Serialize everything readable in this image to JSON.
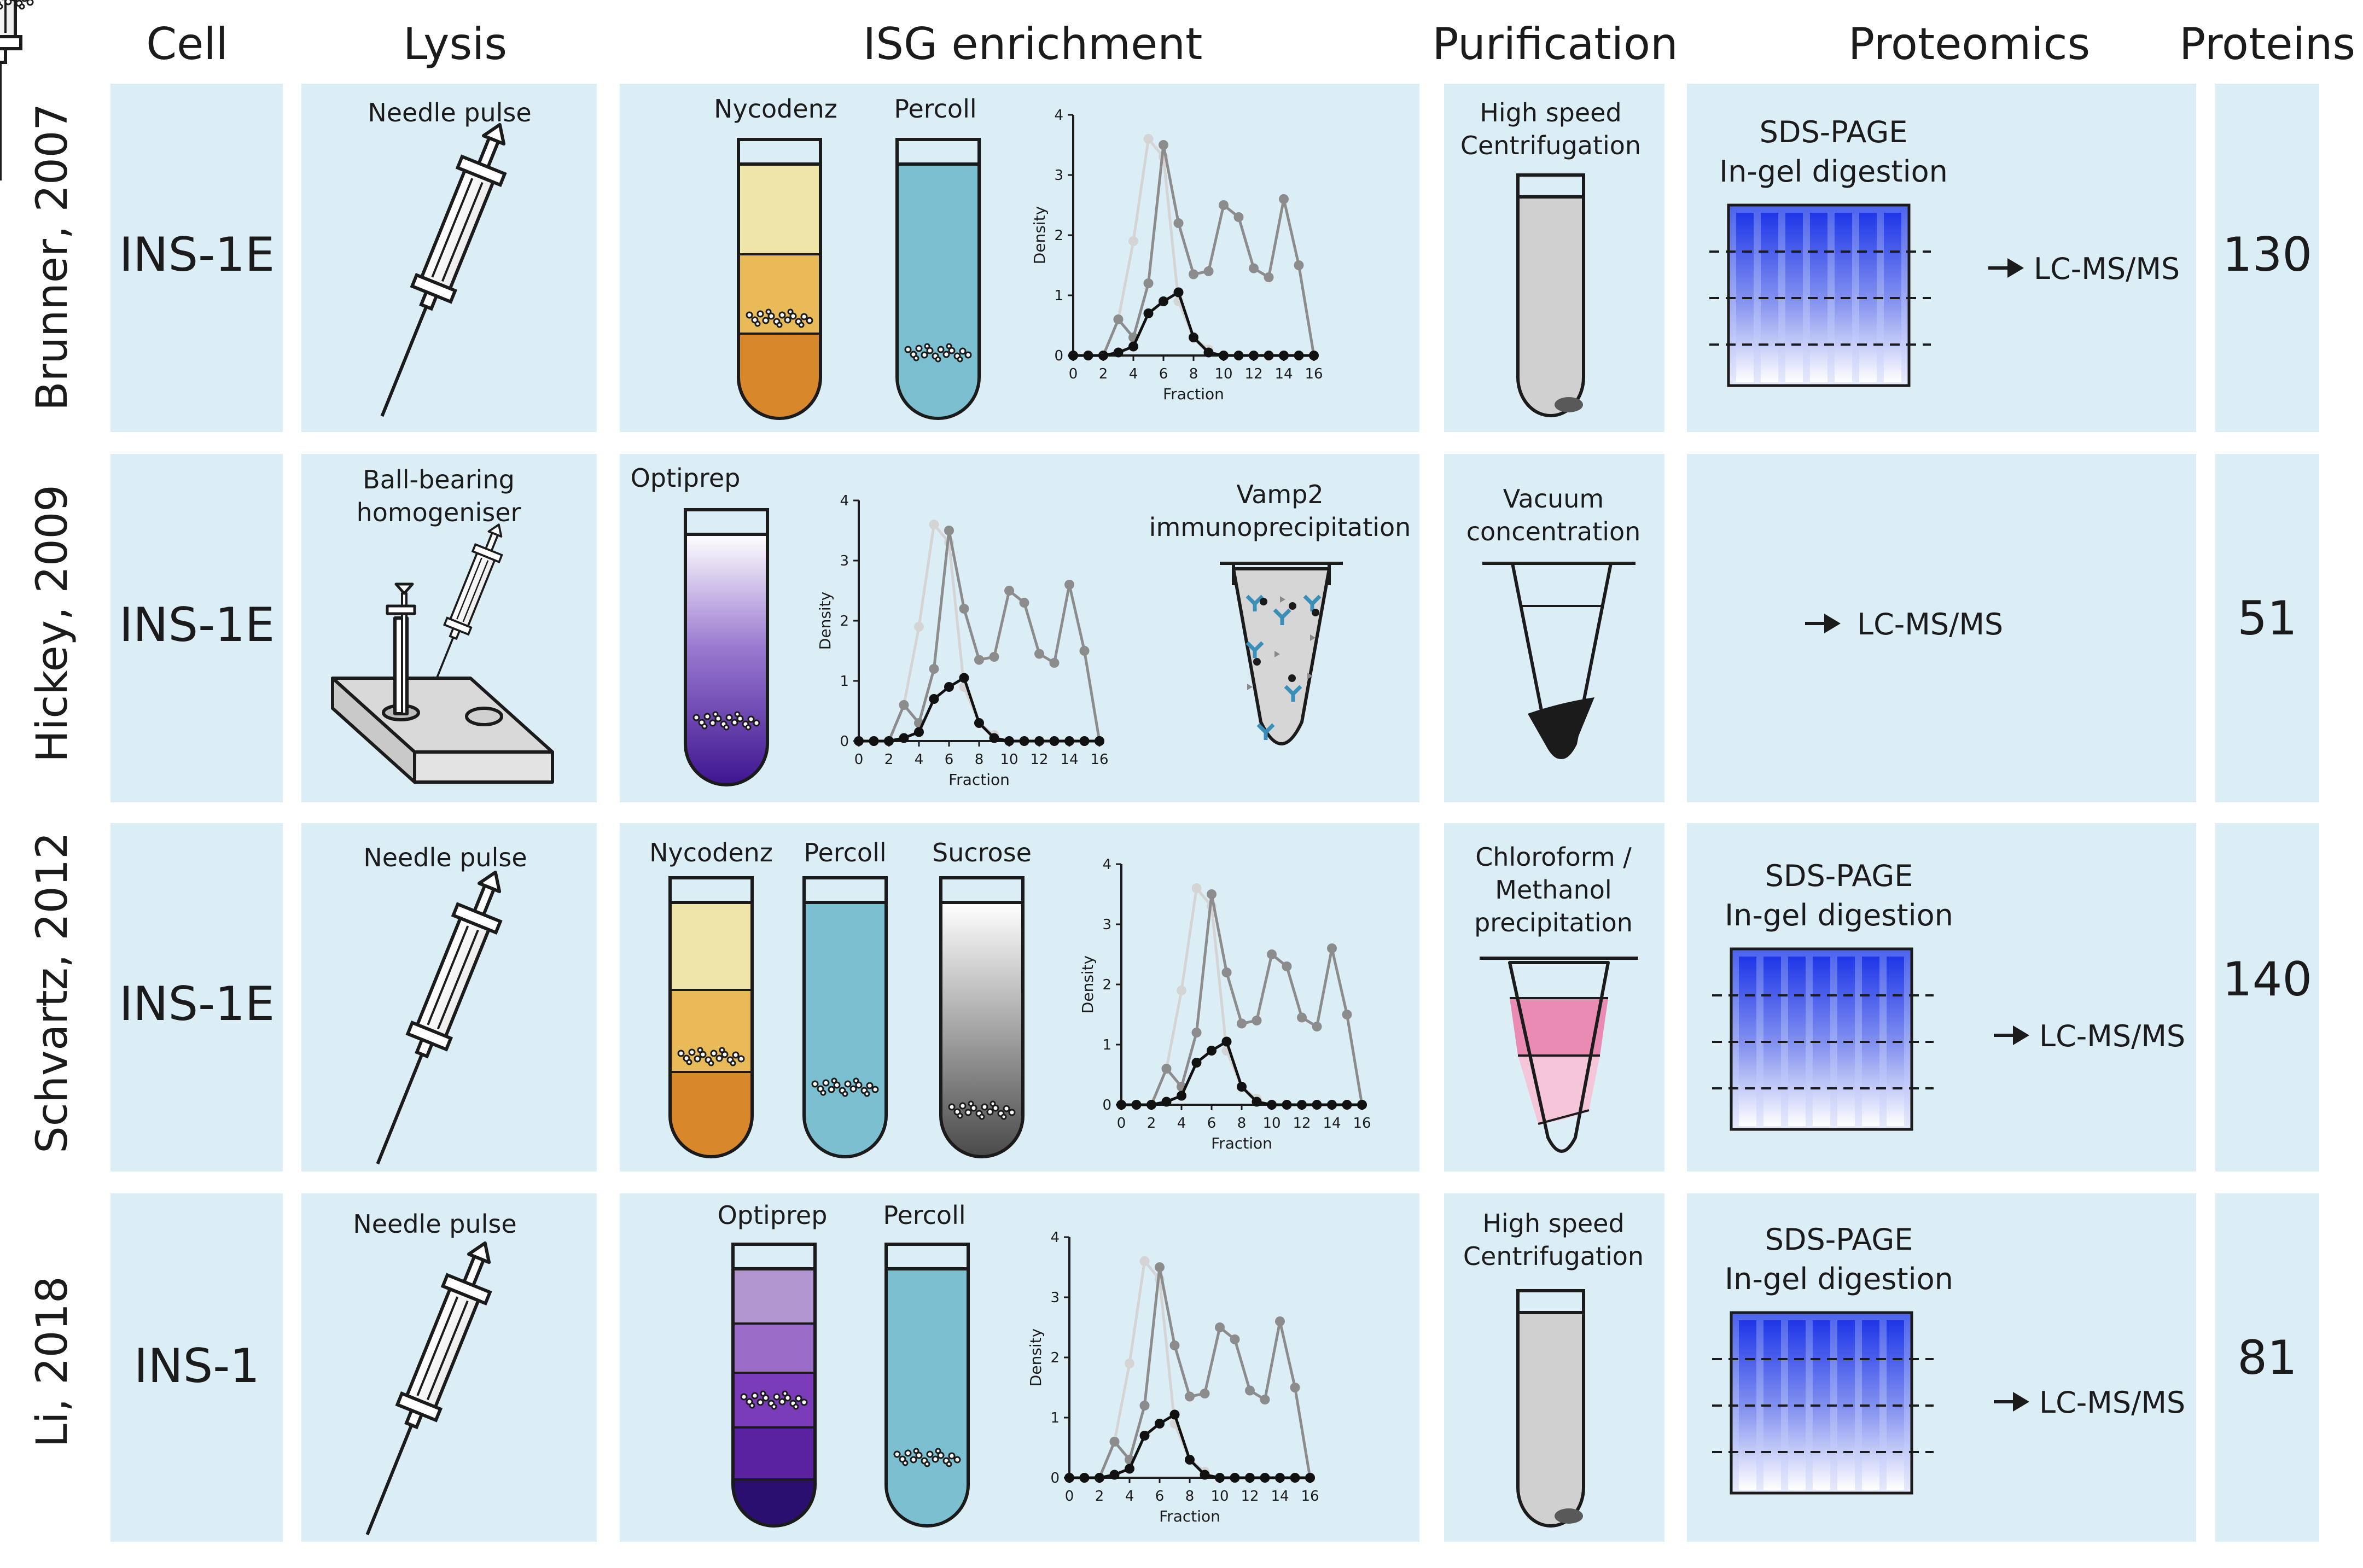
{
  "headers": {
    "cell": "Cell",
    "lysis": "Lysis",
    "enrichment": "ISG enrichment",
    "purification": "Purification",
    "proteomics": "Proteomics",
    "proteins": "Proteins"
  },
  "colors": {
    "panel": "#dceef5",
    "nycodenz_top": "#f0e5a8",
    "nycodenz_mid": "#e8ba58",
    "nycodenz_bottom": "#d8882a",
    "percoll": "#7bbfd0",
    "optiprep_top": "#ffffff",
    "optiprep_bottom": "#4a1b93",
    "sucrose_top": "#ffffff",
    "sucrose_bottom": "#595959",
    "gel": "#2340e6",
    "pink": "#e98bb3",
    "pink_light": "#f5c6d9",
    "pellet": "#595959"
  },
  "rows": [
    {
      "study": "Brunner, 2007",
      "cell": "INS-1E",
      "lysis": [
        "Needle pulse"
      ],
      "gradients": [
        "Nycodenz",
        "Percoll"
      ],
      "purification": [
        "High speed",
        "Centrifugation"
      ],
      "proteomics": [
        "SDS-PAGE",
        "In-gel digestion"
      ],
      "ms": "LC-MS/MS",
      "proteins": "130"
    },
    {
      "study": "Hickey, 2009",
      "cell": "INS-1E",
      "lysis": [
        "Ball-bearing",
        "homogeniser"
      ],
      "gradients": [
        "Optiprep"
      ],
      "ip": [
        "Vamp2",
        "immunoprecipitation"
      ],
      "purification": [
        "Vacuum",
        "concentration"
      ],
      "ms": "LC-MS/MS",
      "proteins": "51"
    },
    {
      "study": "Schvartz, 2012",
      "cell": "INS-1E",
      "lysis": [
        "Needle pulse"
      ],
      "gradients": [
        "Nycodenz",
        "Percoll",
        "Sucrose"
      ],
      "purification": [
        "Chloroform /",
        "Methanol",
        "precipitation"
      ],
      "proteomics": [
        "SDS-PAGE",
        "In-gel digestion"
      ],
      "ms": "LC-MS/MS",
      "proteins": "140"
    },
    {
      "study": "Li, 2018",
      "cell": "INS-1",
      "lysis": [
        "Needle pulse"
      ],
      "gradients": [
        "Optiprep",
        "Percoll"
      ],
      "purification": [
        "High speed",
        "Centrifugation"
      ],
      "proteomics": [
        "SDS-PAGE",
        "In-gel digestion"
      ],
      "ms": "LC-MS/MS",
      "proteins": "81"
    }
  ],
  "chart_data": {
    "type": "line",
    "xlabel": "Fraction",
    "ylabel": "Density",
    "xlim": [
      0,
      16
    ],
    "ylim": [
      0,
      4
    ],
    "xticks": [
      "0",
      "2",
      "4",
      "6",
      "8",
      "10",
      "12",
      "14",
      "16"
    ],
    "yticks": [
      "0",
      "1",
      "2",
      "3",
      "4"
    ],
    "series": [
      {
        "name": "light",
        "color": "#d4d4d4",
        "x": [
          3,
          4,
          5,
          6,
          7,
          8,
          9
        ],
        "values": [
          0.6,
          1.9,
          3.6,
          3.3,
          0.9,
          0.3,
          0.1
        ]
      },
      {
        "name": "grey",
        "color": "#8c8c8c",
        "x": [
          0,
          1,
          2,
          3,
          4,
          5,
          6,
          7,
          8,
          9,
          10,
          11,
          12,
          13,
          14,
          15,
          16
        ],
        "values": [
          0,
          0,
          0,
          0.6,
          0.3,
          1.2,
          3.5,
          2.2,
          1.35,
          1.4,
          2.5,
          2.3,
          1.45,
          1.3,
          2.6,
          1.5,
          0
        ]
      },
      {
        "name": "black",
        "color": "#111111",
        "x": [
          0,
          1,
          2,
          3,
          4,
          5,
          6,
          7,
          8,
          9,
          10,
          11,
          12,
          13,
          14,
          15,
          16
        ],
        "values": [
          0,
          0,
          0,
          0.05,
          0.15,
          0.7,
          0.9,
          1.05,
          0.3,
          0.05,
          0,
          0,
          0,
          0,
          0,
          0,
          0
        ]
      }
    ]
  }
}
